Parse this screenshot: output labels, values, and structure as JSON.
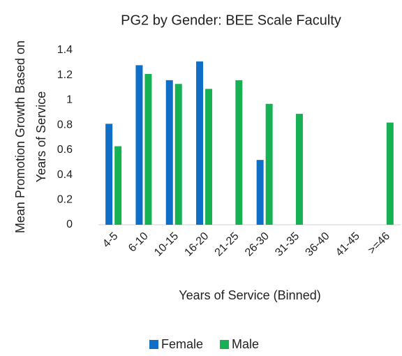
{
  "chart_data": {
    "type": "bar",
    "title": "PG2 by Gender: BEE Scale Faculty",
    "x_label": "Years of Service (Binned)",
    "y_label": [
      "Mean Promotion Growth Based on",
      "Years of Service"
    ],
    "categories": [
      "4-5",
      "6-10",
      "10-15",
      "16-20",
      "21-25",
      "26-30",
      "31-35",
      "36-40",
      "41-45",
      ">=46"
    ],
    "series": [
      {
        "name": "Female",
        "color": "#0f6fc6",
        "values": [
          0.81,
          1.28,
          1.16,
          1.31,
          null,
          0.52,
          null,
          null,
          null,
          null
        ]
      },
      {
        "name": "Male",
        "color": "#17b153",
        "values": [
          0.63,
          1.21,
          1.13,
          1.09,
          1.16,
          0.97,
          0.89,
          null,
          null,
          0.82
        ]
      }
    ],
    "ylim": [
      0,
      1.4
    ],
    "yticks": [
      0,
      0.2,
      0.4,
      0.6,
      0.8,
      1,
      1.2,
      1.4
    ],
    "grid": false,
    "legend": "bottom"
  }
}
